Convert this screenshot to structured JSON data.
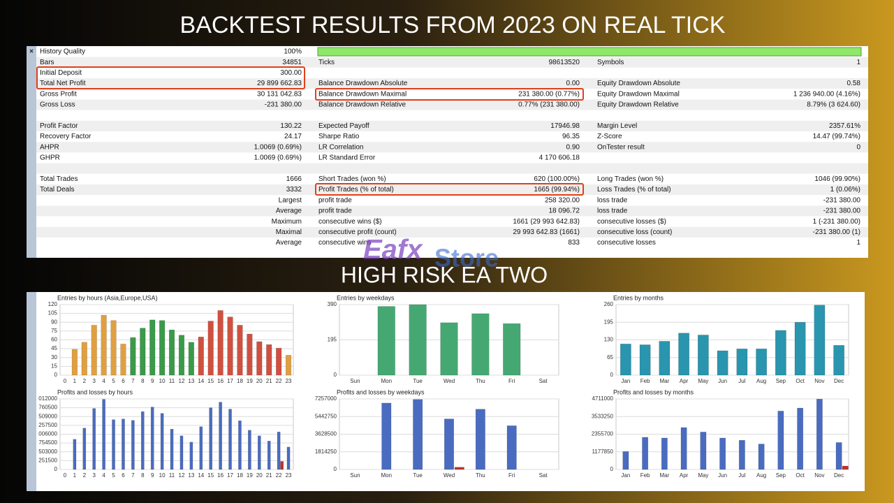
{
  "header": {
    "title": "BACKTEST RESULTS FROM 2023 ON REAL TICK",
    "subtitle": "HIGH RISK EA TWO",
    "watermark": [
      "Eafx",
      "Store"
    ]
  },
  "table": {
    "rows": [
      [
        [
          "History Quality",
          "100%"
        ]
      ],
      [
        [
          "Bars",
          "34851"
        ],
        [
          "Ticks",
          "98613520"
        ],
        [
          "Symbols",
          "1"
        ]
      ],
      [
        [
          "Initial Deposit",
          "300.00"
        ]
      ],
      [
        [
          "Total Net Profit",
          "29 899 662.83"
        ],
        [
          "Balance Drawdown Absolute",
          "0.00"
        ],
        [
          "Equity Drawdown Absolute",
          "0.58"
        ]
      ],
      [
        [
          "Gross Profit",
          "30 131 042.83"
        ],
        [
          "Balance Drawdown Maximal",
          "231 380.00 (0.77%)"
        ],
        [
          "Equity Drawdown Maximal",
          "1 236 940.00 (4.16%)"
        ]
      ],
      [
        [
          "Gross Loss",
          "-231 380.00"
        ],
        [
          "Balance Drawdown Relative",
          "0.77% (231 380.00)"
        ],
        [
          "Equity Drawdown Relative",
          "8.79% (3 624.60)"
        ]
      ],
      [],
      [
        [
          "Profit Factor",
          "130.22"
        ],
        [
          "Expected Payoff",
          "17946.98"
        ],
        [
          "Margin Level",
          "2357.61%"
        ]
      ],
      [
        [
          "Recovery Factor",
          "24.17"
        ],
        [
          "Sharpe Ratio",
          "96.35"
        ],
        [
          "Z-Score",
          "14.47 (99.74%)"
        ]
      ],
      [
        [
          "AHPR",
          "1.0069 (0.69%)"
        ],
        [
          "LR Correlation",
          "0.90"
        ],
        [
          "OnTester result",
          "0"
        ]
      ],
      [
        [
          "GHPR",
          "1.0069 (0.69%)"
        ],
        [
          "LR Standard Error",
          "4 170 606.18"
        ]
      ],
      [],
      [
        [
          "Total Trades",
          "1666"
        ],
        [
          "Short Trades (won %)",
          "620 (100.00%)"
        ],
        [
          "Long Trades (won %)",
          "1046 (99.90%)"
        ]
      ],
      [
        [
          "Total Deals",
          "3332"
        ],
        [
          "Profit Trades (% of total)",
          "1665 (99.94%)"
        ],
        [
          "Loss Trades (% of total)",
          "1 (0.06%)"
        ]
      ],
      [
        [
          "Largest"
        ],
        [
          "profit trade",
          "258 320.00"
        ],
        [
          "loss trade",
          "-231 380.00"
        ]
      ],
      [
        [
          "Average"
        ],
        [
          "profit trade",
          "18 096.72"
        ],
        [
          "loss trade",
          "-231 380.00"
        ]
      ],
      [
        [
          "Maximum"
        ],
        [
          "consecutive wins ($)",
          "1661 (29 993 642.83)"
        ],
        [
          "consecutive losses ($)",
          "1 (-231 380.00)"
        ]
      ],
      [
        [
          "Maximal"
        ],
        [
          "consecutive profit (count)",
          "29 993 642.83 (1661)"
        ],
        [
          "consecutive loss (count)",
          "-231 380.00 (1)"
        ]
      ],
      [
        [
          "Average"
        ],
        [
          "consecutive wins",
          "833"
        ],
        [
          "consecutive losses",
          "1"
        ]
      ]
    ]
  },
  "chart_data": [
    {
      "type": "bar",
      "title": "Entries by hours (Asia,Europe,USA)",
      "categories": [
        "0",
        "1",
        "2",
        "3",
        "4",
        "5",
        "6",
        "7",
        "8",
        "9",
        "10",
        "11",
        "12",
        "13",
        "14",
        "15",
        "16",
        "17",
        "18",
        "19",
        "20",
        "21",
        "22",
        "23"
      ],
      "series": [
        {
          "colors": [
            "#e0a040",
            "#e0a040",
            "#e0a040",
            "#e0a040",
            "#e0a040",
            "#e0a040",
            "#e0a040",
            "#3a9a4a",
            "#3a9a4a",
            "#3a9a4a",
            "#3a9a4a",
            "#3a9a4a",
            "#3a9a4a",
            "#3a9a4a",
            "#d05040",
            "#d05040",
            "#d05040",
            "#d05040",
            "#d05040",
            "#d05040",
            "#d05040",
            "#d05040",
            "#d05040",
            "#e0a040"
          ],
          "values": [
            0,
            44,
            56,
            85,
            102,
            93,
            53,
            64,
            80,
            94,
            93,
            77,
            68,
            56,
            65,
            92,
            110,
            99,
            85,
            70,
            57,
            52,
            46,
            34
          ]
        }
      ],
      "ylim": [
        0,
        120
      ],
      "yticks": [
        0,
        15,
        30,
        45,
        60,
        75,
        90,
        105,
        120
      ],
      "grid": true
    },
    {
      "type": "bar",
      "title": "Entries by weekdays",
      "categories": [
        "Sun",
        "Mon",
        "Tue",
        "Wed",
        "Thu",
        "Fri",
        "Sat"
      ],
      "series": [
        {
          "color": "#45a872",
          "values": [
            0,
            380,
            390,
            290,
            340,
            285,
            0
          ]
        }
      ],
      "ylim": [
        0,
        390
      ],
      "yticks": [
        0,
        195,
        390
      ],
      "grid": true
    },
    {
      "type": "bar",
      "title": "Entries by months",
      "categories": [
        "Jan",
        "Feb",
        "Mar",
        "Apr",
        "May",
        "Jun",
        "Jul",
        "Aug",
        "Sep",
        "Oct",
        "Nov",
        "Dec"
      ],
      "series": [
        {
          "color": "#2a95ae",
          "values": [
            115,
            112,
            125,
            155,
            148,
            90,
            97,
            97,
            165,
            195,
            258,
            110
          ]
        }
      ],
      "ylim": [
        0,
        260
      ],
      "yticks": [
        0,
        65,
        130,
        195,
        260
      ],
      "grid": true
    },
    {
      "type": "bar",
      "title": "Profits and losses by hours",
      "categories": [
        "0",
        "1",
        "2",
        "3",
        "4",
        "5",
        "6",
        "7",
        "8",
        "9",
        "10",
        "11",
        "12",
        "13",
        "14",
        "15",
        "16",
        "17",
        "18",
        "19",
        "20",
        "21",
        "22",
        "23"
      ],
      "series": [
        {
          "color": "#4a6cc0",
          "values": [
            0,
            860000,
            1180000,
            1740000,
            2000000,
            1420000,
            1440000,
            1400000,
            1650000,
            1780000,
            1600000,
            1150000,
            960000,
            780000,
            1220000,
            1760000,
            1920000,
            1720000,
            1390000,
            1120000,
            960000,
            810000,
            1070000,
            640000
          ]
        },
        {
          "color": "#c0302a",
          "values": [
            0,
            0,
            0,
            0,
            0,
            0,
            0,
            0,
            0,
            0,
            0,
            0,
            0,
            0,
            0,
            0,
            0,
            0,
            0,
            0,
            0,
            0,
            231380,
            0
          ]
        }
      ],
      "ylim": [
        0,
        2012000
      ],
      "yticks": [
        0,
        251500,
        503000,
        754500,
        {
          "value": 1006000,
          "label": "006000"
        },
        {
          "value": 1257500,
          "label": "257500"
        },
        {
          "value": 1509000,
          "label": "509000"
        },
        {
          "value": 1760500,
          "label": "760500"
        },
        {
          "value": 2012000,
          "label": "012000"
        }
      ],
      "grid": true
    },
    {
      "type": "bar",
      "title": "Profits and losses by weekdays",
      "categories": [
        "Sun",
        "Mon",
        "Tue",
        "Wed",
        "Thu",
        "Fri",
        "Sat"
      ],
      "series": [
        {
          "color": "#4a6cc0",
          "values": [
            0,
            6830000,
            7200000,
            5200000,
            6200000,
            4500000,
            0
          ]
        },
        {
          "color": "#c0302a",
          "values": [
            0,
            0,
            0,
            231380,
            0,
            0,
            0
          ]
        }
      ],
      "ylim": [
        0,
        7257000
      ],
      "yticks": [
        0,
        1814250,
        3628500,
        5442750,
        7257000
      ],
      "grid": true
    },
    {
      "type": "bar",
      "title": "Profits and losses by months",
      "categories": [
        "Jan",
        "Feb",
        "Mar",
        "Apr",
        "May",
        "Jun",
        "Jul",
        "Aug",
        "Sep",
        "Oct",
        "Nov",
        "Dec"
      ],
      "series": [
        {
          "color": "#4a6cc0",
          "values": [
            1200000,
            2150000,
            2100000,
            2800000,
            2500000,
            2100000,
            1950000,
            1700000,
            3900000,
            4100000,
            4700000,
            1800000
          ]
        },
        {
          "color": "#c0302a",
          "values": [
            0,
            0,
            0,
            0,
            0,
            0,
            0,
            0,
            0,
            0,
            0,
            231380
          ]
        }
      ],
      "ylim": [
        0,
        4711000
      ],
      "yticks": [
        0,
        1177850,
        2355700,
        3533250,
        4711000
      ],
      "grid": true
    }
  ]
}
